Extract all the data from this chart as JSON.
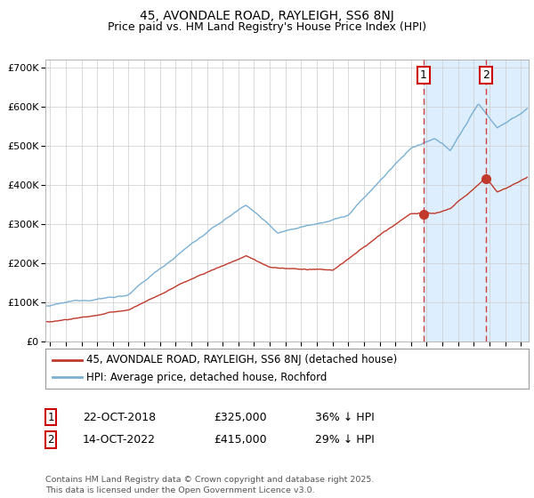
{
  "title": "45, AVONDALE ROAD, RAYLEIGH, SS6 8NJ",
  "subtitle": "Price paid vs. HM Land Registry's House Price Index (HPI)",
  "ylim": [
    0,
    720000
  ],
  "xlim_start": 1994.7,
  "xlim_end": 2025.5,
  "ytick_labels": [
    "£0",
    "£100K",
    "£200K",
    "£300K",
    "£400K",
    "£500K",
    "£600K",
    "£700K"
  ],
  "ytick_values": [
    0,
    100000,
    200000,
    300000,
    400000,
    500000,
    600000,
    700000
  ],
  "xtick_values": [
    1995,
    1996,
    1997,
    1998,
    1999,
    2000,
    2001,
    2002,
    2003,
    2004,
    2005,
    2006,
    2007,
    2008,
    2009,
    2010,
    2011,
    2012,
    2013,
    2014,
    2015,
    2016,
    2017,
    2018,
    2019,
    2020,
    2021,
    2022,
    2023,
    2024,
    2025
  ],
  "hpi_color": "#7aafd4",
  "price_color": "#c0392b",
  "marker1_date": 2018.81,
  "marker2_date": 2022.79,
  "marker1_price": 325000,
  "marker2_price": 415000,
  "vline1_color": "#d04040",
  "vline2_color": "#d04040",
  "legend_label_price": "45, AVONDALE ROAD, RAYLEIGH, SS6 8NJ (detached house)",
  "legend_label_hpi": "HPI: Average price, detached house, Rochford",
  "table_row1": [
    "1",
    "22-OCT-2018",
    "£325,000",
    "36% ↓ HPI"
  ],
  "table_row2": [
    "2",
    "14-OCT-2022",
    "£415,000",
    "29% ↓ HPI"
  ],
  "footnote": "Contains HM Land Registry data © Crown copyright and database right 2025.\nThis data is licensed under the Open Government Licence v3.0.",
  "bg_color": "#ffffff",
  "grid_color": "#cccccc",
  "shaded_color": "#ddeeff",
  "title_fontsize": 10,
  "subtitle_fontsize": 9
}
